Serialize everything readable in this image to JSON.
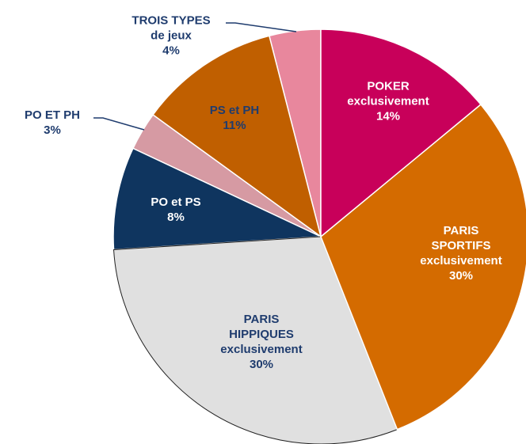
{
  "chart_data": {
    "type": "pie",
    "categories": [
      "POKER\nexclusivement",
      "PARIS\nSPORTIFS\nexclusivement",
      "PARIS\nHIPPIQUES\nexclusivement",
      "PO et PS",
      "PO ET PH",
      "PS et PH",
      "TROIS TYPES\nde jeux"
    ],
    "values": [
      14,
      30,
      30,
      8,
      3,
      11,
      4
    ],
    "value_labels": [
      "14%",
      "30%",
      "30%",
      "8%",
      "3%",
      "11%",
      "4%"
    ],
    "colors": [
      "#c8005a",
      "#d46b00",
      "#e0e0e0",
      "#0f355f",
      "#d69aa3",
      "#c05f00",
      "#e8879d"
    ],
    "label_colors": [
      "#ffffff",
      "#ffffff",
      "#1f3c6e",
      "#ffffff",
      "#1f3c6e",
      "#1f3c6e",
      "#1f3c6e"
    ]
  }
}
